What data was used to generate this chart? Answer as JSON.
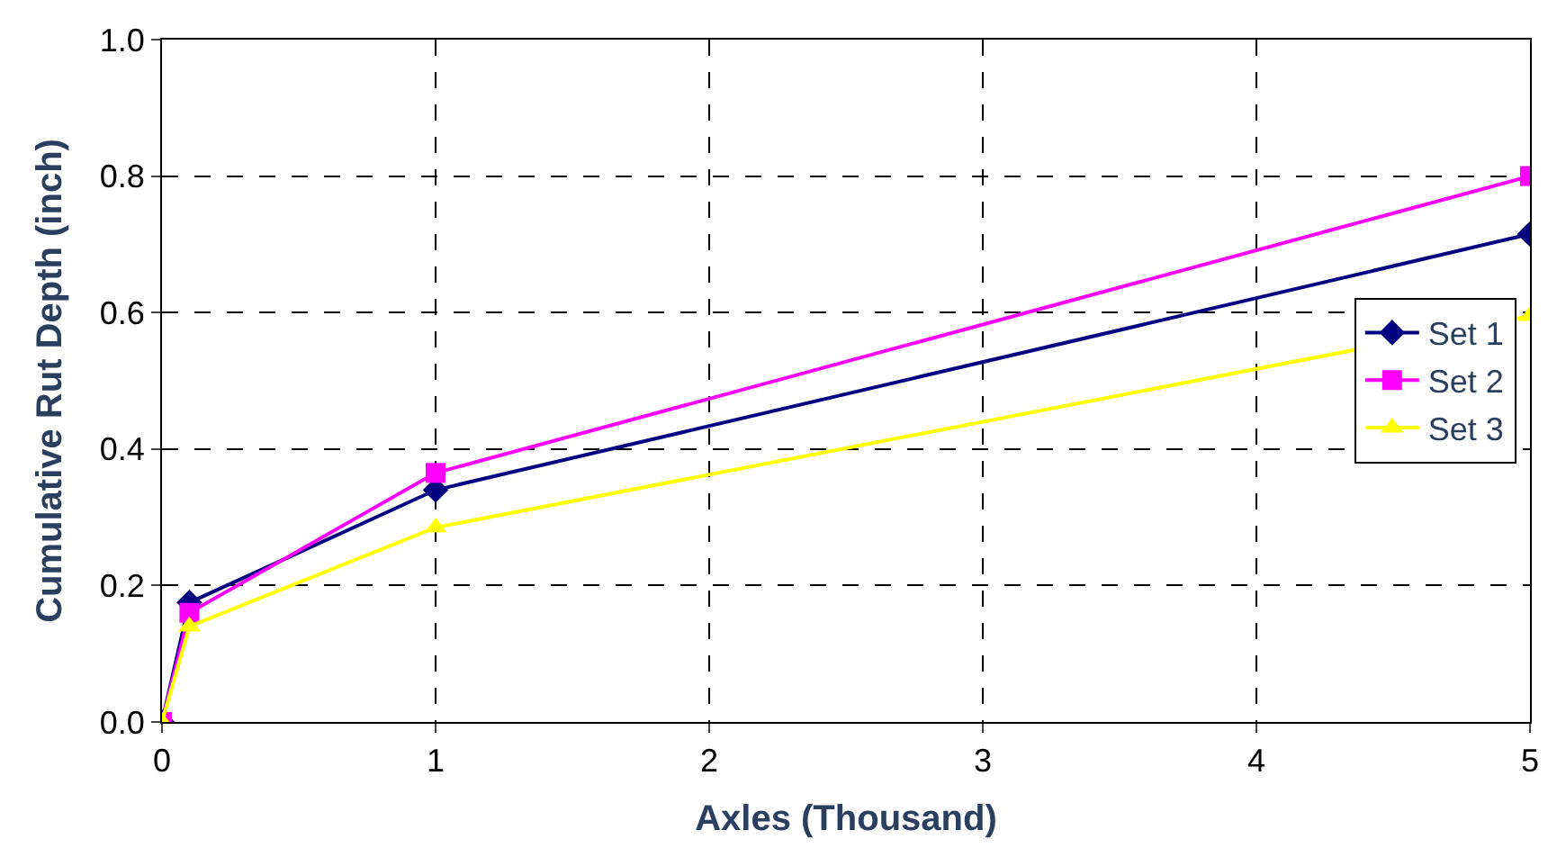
{
  "chart_data": {
    "type": "line",
    "xlabel": "Axles (Thousand)",
    "ylabel": "Cumulative Rut Depth (inch)",
    "xlim": [
      0,
      5
    ],
    "xticks": [
      0,
      1,
      2,
      3,
      4,
      5
    ],
    "ylim": [
      0,
      1
    ],
    "yticks": [
      {
        "value": 0,
        "label": "0.0"
      },
      {
        "value": 0.2,
        "label": "0.2"
      },
      {
        "value": 0.4,
        "label": "0.4"
      },
      {
        "value": 0.6,
        "label": "0.6"
      },
      {
        "value": 0.8,
        "label": "0.8"
      },
      {
        "value": 1,
        "label": "1.0"
      }
    ],
    "x": [
      0,
      0.1,
      1,
      5
    ],
    "grid": true,
    "legend": "right",
    "line_style": "solid",
    "series": [
      {
        "name": "Set 1",
        "color": "#000080",
        "marker": "diamond",
        "values": [
          0,
          0.175,
          0.34,
          0.715
        ]
      },
      {
        "name": "Set 2",
        "color": "#ff00ff",
        "marker": "square",
        "values": [
          0,
          0.16,
          0.365,
          0.8
        ]
      },
      {
        "name": "Set 3",
        "color": "#ffff00",
        "marker": "triangle",
        "values": [
          0,
          0.14,
          0.285,
          0.595
        ]
      }
    ]
  }
}
